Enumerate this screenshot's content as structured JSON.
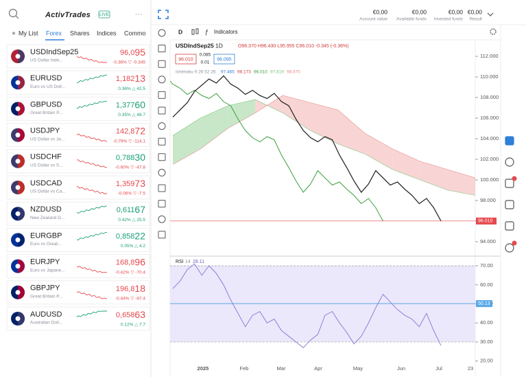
{
  "header": {
    "logo": "ActivTrades",
    "badge": "LIVE",
    "menu": "···"
  },
  "tabs": [
    "My List",
    "Forex",
    "Shares",
    "Indices",
    "Commo"
  ],
  "watchlist": [
    {
      "symbol": "USDIndSep25",
      "description": "US Dollar Inde...",
      "price": "96,095",
      "change": "-0.36% ▽ -0.345",
      "color": "#e5484d"
    },
    {
      "symbol": "EURUSD",
      "description": "Euro vs US Doll...",
      "price": "1,18213",
      "change": "0.36% △ 42.5",
      "color": "#e5484d"
    },
    {
      "symbol": "GBPUSD",
      "description": "Great Britain P...",
      "price": "1,37760",
      "change": "0.35% △ 48.7",
      "color": "#1a9e77"
    },
    {
      "symbol": "USDJPY",
      "description": "US Dollar vs Ja...",
      "price": "142,872",
      "change": "-0.79% ▽ -114.1",
      "color": "#e5484d"
    },
    {
      "symbol": "USDCHF",
      "description": "US Dollar vs S...",
      "price": "0,78830",
      "change": "-0.60% ▽ -47.8",
      "color": "#1a9e77"
    },
    {
      "symbol": "USDCAD",
      "description": "US Dollar vs Ca...",
      "price": "1,35973",
      "change": "-0.06% ▽ -7.5",
      "color": "#e5484d"
    },
    {
      "symbol": "NZDUSD",
      "description": "New Zealand D...",
      "price": "0,61167",
      "change": "0.42% △ 25.5",
      "color": "#1a9e77"
    },
    {
      "symbol": "EURGBP",
      "description": "Euro vs Great...",
      "price": "0,85822",
      "change": "0.05% △ 4.2",
      "color": "#1a9e77"
    },
    {
      "symbol": "EURJPY",
      "description": "Euro vs Japane...",
      "price": "168,896",
      "change": "-0.42% ▽ -70.4",
      "color": "#e5484d"
    },
    {
      "symbol": "GBPJPY",
      "description": "Great Britain P...",
      "price": "196,818",
      "change": "-0.44% ▽ -87.4",
      "color": "#e5484d"
    },
    {
      "symbol": "AUDUSD",
      "description": "Australian Doll...",
      "price": "0,65863",
      "change": "0.12% △ 7.7",
      "color": "#e5484d"
    }
  ],
  "account": [
    {
      "value": "€0,00",
      "label": "Account value"
    },
    {
      "value": "€0,00",
      "label": "Available funds"
    },
    {
      "value": "€0,00",
      "label": "Invested funds"
    },
    {
      "value": "€0,00",
      "label": "Result"
    }
  ],
  "toolbar": {
    "timeframe": "D",
    "indicators": "Indicators"
  },
  "legend": {
    "symbol": "USDIndSep25",
    "interval": "1D",
    "ohlc": [
      "O96.370",
      "H96.430",
      "L95.955",
      "C96.010"
    ],
    "change": "-0.345 (-0.36%)",
    "bid": "96.010",
    "spread_top": "0.085",
    "spread_bottom": "0.01",
    "ask": "96.095",
    "ichimoku": "Ichimoku 9 26 52 26",
    "ichimoku_values": [
      {
        "text": "97.465",
        "color": "#2f7fd8"
      },
      {
        "text": "98.173",
        "color": "#d23b3b"
      },
      {
        "text": "96.010",
        "color": "#3a9e3a"
      },
      {
        "text": "97.819",
        "color": "#7bc47b"
      },
      {
        "text": "98.870",
        "color": "#e88b8b"
      }
    ]
  },
  "chart_data": [
    {
      "type": "line",
      "series": [
        {
          "name": "USDIndSep25",
          "color": "#2b2b2b",
          "values": [
            106.1,
            106.8,
            107.5,
            108.6,
            109.2,
            109.8,
            109.4,
            110.1,
            109.3,
            108.9,
            108.3,
            108.7,
            108.2,
            107.9,
            108.4,
            107.6,
            107.2,
            105.9,
            104.8,
            104.1,
            103.7,
            104.2,
            103.9,
            102.4,
            101.2,
            99.9,
            98.8,
            99.6,
            100.9,
            100.2,
            99.5,
            99.8,
            99.1,
            98.5,
            97.7,
            98.2,
            97.3,
            96.01
          ]
        },
        {
          "color": "#9bd39b",
          "values": [
            104.3,
            106,
            107.2,
            107.8,
            106.5,
            104.8,
            103.5,
            102.5,
            101,
            100,
            99,
            98.5
          ]
        },
        {
          "color": "#f2b3b0",
          "values": [
            101.5,
            103,
            105,
            106.5,
            108.2,
            107.5,
            106.8,
            104.5,
            103,
            101.8,
            101,
            100.2
          ]
        }
      ],
      "ylim": [
        93,
        113
      ],
      "yticks": [
        {
          "value": 94,
          "label": "94.000"
        },
        {
          "value": 96,
          "label": "96.000"
        },
        {
          "value": 98,
          "label": "98.000"
        },
        {
          "value": 100,
          "label": "100.000"
        },
        {
          "value": 102,
          "label": "102.000"
        },
        {
          "value": 104,
          "label": "104.000"
        },
        {
          "value": 106,
          "label": "106.000"
        },
        {
          "value": 108,
          "label": "108.000"
        },
        {
          "value": 110,
          "label": "110.000"
        },
        {
          "value": 112,
          "label": "112.000"
        }
      ],
      "last_price": {
        "value": 96.01,
        "label": "96.010"
      },
      "x_labels": [
        "2025",
        "Feb",
        "Mar",
        "Apr",
        "May",
        "Jun",
        "Jul",
        "23"
      ]
    },
    {
      "type": "line",
      "title": "RSI",
      "period": "14",
      "value_label": "28.11",
      "series": [
        {
          "color": "#8b7fd6",
          "values": [
            58,
            62,
            68,
            71,
            65,
            70,
            66,
            60,
            52,
            45,
            38,
            44,
            46,
            40,
            42,
            36,
            33,
            30,
            27,
            31,
            34,
            44,
            46,
            40,
            35,
            29,
            33,
            40,
            48,
            55,
            51,
            47,
            44,
            42,
            38,
            45,
            36,
            28.11
          ]
        }
      ],
      "ylim": [
        18,
        73
      ],
      "yticks": [
        {
          "value": 20,
          "label": "20.00"
        },
        {
          "value": 30,
          "label": "30.00"
        },
        {
          "value": 40,
          "label": "40.00"
        },
        {
          "value": 50,
          "label": "50.00"
        },
        {
          "value": 60,
          "label": "60.00"
        },
        {
          "value": 70,
          "label": "70.00"
        }
      ],
      "bands": [
        30,
        70
      ],
      "ma": {
        "value": 50.13,
        "label": "50.13"
      }
    }
  ]
}
